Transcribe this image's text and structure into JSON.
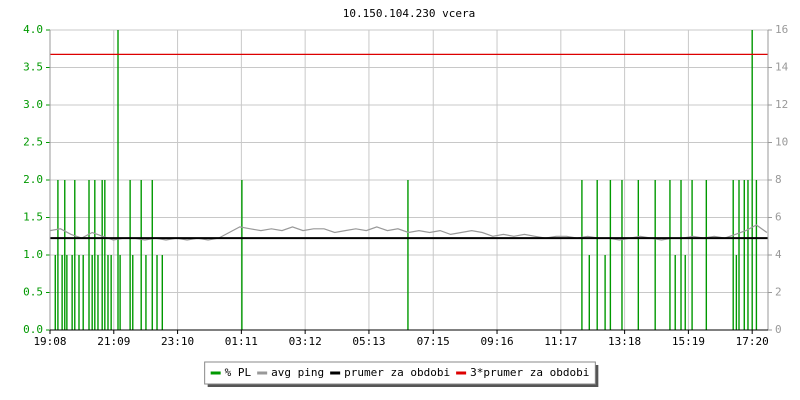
{
  "chart_data": {
    "type": "rrd",
    "title": "10.150.104.230 vcera",
    "xlim": [
      0,
      1362
    ],
    "xticks": [
      {
        "value": 0,
        "label": "19:08"
      },
      {
        "value": 121,
        "label": "21:09"
      },
      {
        "value": 242,
        "label": "23:10"
      },
      {
        "value": 363,
        "label": "01:11"
      },
      {
        "value": 484,
        "label": "03:12"
      },
      {
        "value": 605,
        "label": "05:13"
      },
      {
        "value": 727,
        "label": "07:15"
      },
      {
        "value": 848,
        "label": "09:16"
      },
      {
        "value": 969,
        "label": "11:17"
      },
      {
        "value": 1090,
        "label": "13:18"
      },
      {
        "value": 1211,
        "label": "15:19"
      },
      {
        "value": 1332,
        "label": "17:20"
      }
    ],
    "ylim": [
      0,
      4
    ],
    "yticks": [
      {
        "value": 0,
        "label": "0.0"
      },
      {
        "value": 0.5,
        "label": "0.5"
      },
      {
        "value": 1,
        "label": "1.0"
      },
      {
        "value": 1.5,
        "label": "1.5"
      },
      {
        "value": 2,
        "label": "2.0"
      },
      {
        "value": 2.5,
        "label": "2.5"
      },
      {
        "value": 3,
        "label": "3.0"
      },
      {
        "value": 3.5,
        "label": "3.5"
      },
      {
        "value": 4,
        "label": "4.0"
      }
    ],
    "y2lim": [
      0,
      16
    ],
    "y2ticks": [
      0,
      2,
      4,
      6,
      8,
      10,
      12,
      14,
      16
    ],
    "grid": true,
    "series": [
      {
        "name": "% PL",
        "color": "#009900",
        "style": "spikes",
        "axis": "y",
        "x": [
          10,
          15,
          23,
          28,
          32,
          42,
          47,
          55,
          63,
          74,
          80,
          85,
          91,
          99,
          104,
          110,
          116,
          129,
          133,
          152,
          157,
          173,
          182,
          194,
          203,
          213,
          364,
          679,
          1009,
          1023,
          1038,
          1053,
          1063,
          1085,
          1116,
          1148,
          1176,
          1186,
          1197,
          1205,
          1218,
          1245,
          1296,
          1302,
          1307,
          1317,
          1324,
          1332,
          1340
        ],
        "values": [
          1,
          2,
          1,
          2,
          1,
          1,
          2,
          1,
          1,
          2,
          1,
          2,
          1,
          2,
          2,
          1,
          1,
          4,
          1,
          2,
          1,
          2,
          1,
          2,
          1,
          1,
          2,
          2,
          2,
          1,
          2,
          1,
          2,
          2,
          2,
          2,
          2,
          1,
          2,
          1,
          2,
          2,
          2,
          1,
          2,
          2,
          2,
          4,
          2
        ]
      },
      {
        "name": "avg ping",
        "color": "#999999",
        "style": "line",
        "axis": "y2",
        "x": [
          0,
          20,
          40,
          60,
          80,
          100,
          120,
          140,
          160,
          180,
          200,
          220,
          240,
          260,
          280,
          300,
          320,
          340,
          360,
          380,
          400,
          420,
          440,
          460,
          480,
          500,
          520,
          540,
          560,
          580,
          600,
          620,
          640,
          660,
          680,
          700,
          720,
          740,
          760,
          780,
          800,
          820,
          840,
          860,
          880,
          900,
          920,
          940,
          960,
          980,
          1000,
          1020,
          1040,
          1060,
          1080,
          1100,
          1120,
          1140,
          1160,
          1180,
          1200,
          1220,
          1240,
          1260,
          1280,
          1300,
          1320,
          1340,
          1360
        ],
        "values": [
          5.3,
          5.4,
          5.1,
          4.9,
          5.2,
          5.0,
          4.8,
          4.9,
          4.9,
          4.8,
          4.9,
          4.8,
          4.9,
          4.8,
          4.9,
          4.8,
          4.9,
          5.2,
          5.5,
          5.4,
          5.3,
          5.4,
          5.3,
          5.5,
          5.3,
          5.4,
          5.4,
          5.2,
          5.3,
          5.4,
          5.3,
          5.5,
          5.3,
          5.4,
          5.2,
          5.3,
          5.2,
          5.3,
          5.1,
          5.2,
          5.3,
          5.2,
          5.0,
          5.1,
          5.0,
          5.1,
          5.0,
          4.9,
          5.0,
          5.0,
          4.9,
          5.0,
          4.9,
          4.9,
          4.8,
          4.9,
          5.0,
          4.9,
          4.8,
          4.9,
          4.9,
          5.0,
          4.9,
          5.0,
          4.9,
          5.1,
          5.3,
          5.6,
          5.2
        ]
      },
      {
        "name": "prumer za obdobi",
        "color": "#000000",
        "style": "hline",
        "axis": "y2",
        "value": 4.9
      },
      {
        "name": "3*prumer za obdobi",
        "color": "#dd0000",
        "style": "hline",
        "axis": "y2",
        "value": 14.7
      }
    ]
  }
}
